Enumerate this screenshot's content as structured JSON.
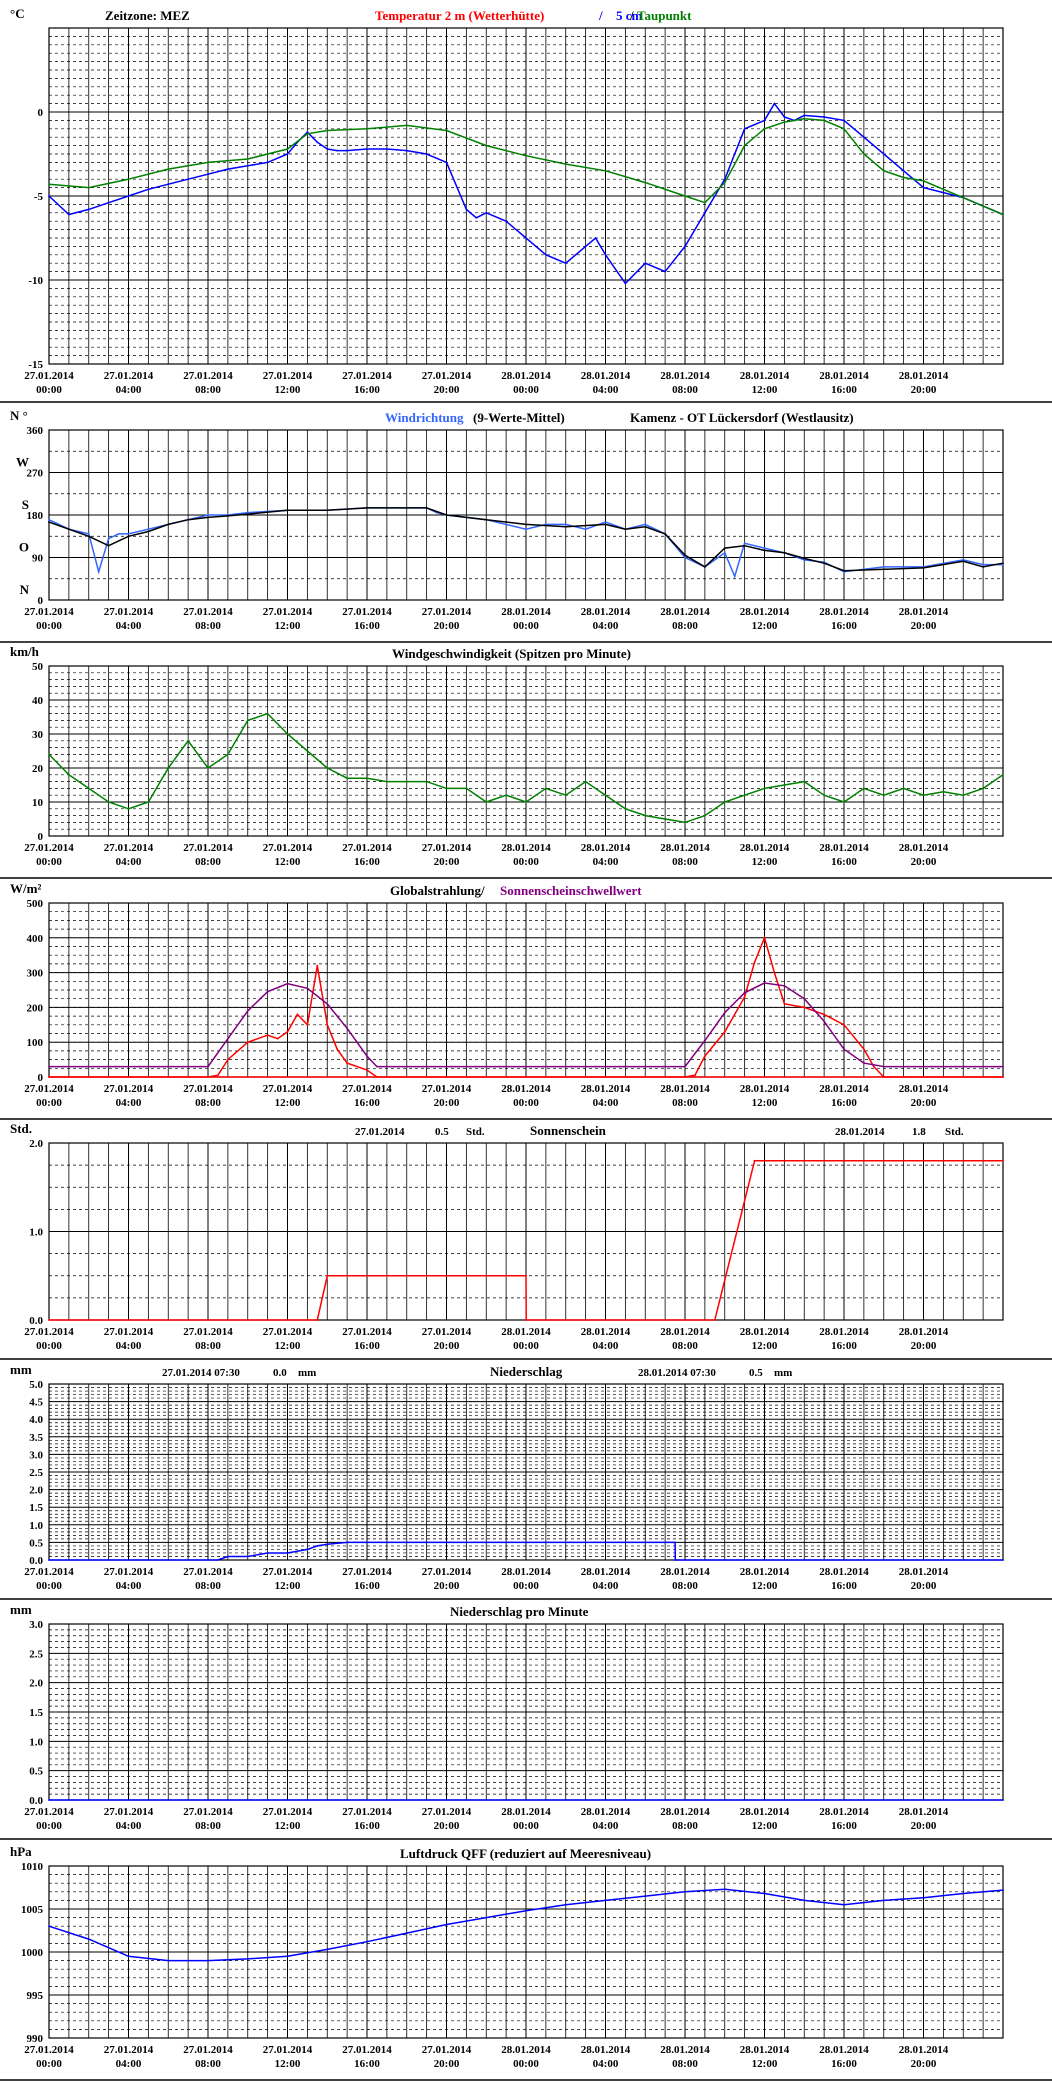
{
  "x_axis": {
    "dates": [
      "27.01.2014",
      "27.01.2014",
      "27.01.2014",
      "27.01.2014",
      "27.01.2014",
      "27.01.2014",
      "28.01.2014",
      "28.01.2014",
      "28.01.2014",
      "28.01.2014",
      "28.01.2014",
      "28.01.2014"
    ],
    "times": [
      "00:00",
      "04:00",
      "08:00",
      "12:00",
      "16:00",
      "20:00",
      "00:00",
      "04:00",
      "08:00",
      "12:00",
      "16:00",
      "20:00"
    ],
    "range_hours": [
      0,
      48
    ]
  },
  "colors": {
    "frame": "#000000",
    "red": "#ff0000",
    "blue": "#0000ff",
    "lightblue": "#3366ff",
    "green": "#008000",
    "purple": "#800080",
    "navy": "#000080"
  },
  "panels": [
    {
      "id": "temperature",
      "unit": "°C",
      "title_parts": [
        {
          "text": "Zeitzone: MEZ",
          "color": "#000000"
        },
        {
          "text": "Temperatur 2 m (Wetterhütte)",
          "color": "#ff0000"
        },
        {
          "text": "/",
          "color": "#0000ff"
        },
        {
          "text": "5 cm",
          "color": "#0000ff"
        },
        {
          "text": "/",
          "color": "#000000"
        },
        {
          "text": "Taupunkt",
          "color": "#008000"
        }
      ],
      "yticks": [
        "0",
        "-5",
        "-10",
        "-15"
      ]
    },
    {
      "id": "wind_direction",
      "unit": "N °",
      "title_parts": [
        {
          "text": "Windrichtung",
          "color": "#3366ff"
        },
        {
          "text": "(9-Werte-Mittel)",
          "color": "#000000"
        },
        {
          "text": "Kamenz - OT Lückersdorf (Westlausitz)",
          "color": "#000000"
        }
      ],
      "yticks": [
        "360",
        "270",
        "180",
        "90",
        "0"
      ],
      "compass": [
        "W",
        "S",
        "O",
        "N"
      ]
    },
    {
      "id": "wind_speed",
      "unit": "km/h",
      "title_parts": [
        {
          "text": "Windgeschwindigkeit (Spitzen pro Minute)",
          "color": "#000000"
        }
      ],
      "yticks": [
        "50",
        "40",
        "30",
        "20",
        "10",
        "0"
      ]
    },
    {
      "id": "radiation",
      "unit": "W/m²",
      "title_parts": [
        {
          "text": "Globalstrahlung/",
          "color": "#000000"
        },
        {
          "text": "Sonnenscheinschwellwert",
          "color": "#800080"
        }
      ],
      "yticks": [
        "500",
        "400",
        "300",
        "200",
        "100",
        "0"
      ]
    },
    {
      "id": "sunshine",
      "unit": "Std.",
      "title_parts": [
        {
          "text": "Sonnenschein",
          "color": "#000000"
        }
      ],
      "summary": [
        {
          "date": "27.01.2014",
          "value": "0.5",
          "unit": "Std."
        },
        {
          "date": "28.01.2014",
          "value": "1.8",
          "unit": "Std."
        }
      ],
      "yticks": [
        "2.0",
        "1.0",
        "0.0"
      ]
    },
    {
      "id": "precipitation",
      "unit": "mm",
      "title_parts": [
        {
          "text": "Niederschlag",
          "color": "#000000"
        }
      ],
      "summary": [
        {
          "date": "27.01.2014 07:30",
          "value": "0.0",
          "unit": "mm"
        },
        {
          "date": "28.01.2014 07:30",
          "value": "0.5",
          "unit": "mm"
        }
      ],
      "yticks": [
        "5.0",
        "4.5",
        "4.0",
        "3.5",
        "3.0",
        "2.5",
        "2.0",
        "1.5",
        "1.0",
        "0.5",
        "0.0"
      ]
    },
    {
      "id": "precip_minute",
      "unit": "mm",
      "title_parts": [
        {
          "text": "Niederschlag pro Minute",
          "color": "#000000"
        }
      ],
      "yticks": [
        "3.0",
        "2.5",
        "2.0",
        "1.5",
        "1.0",
        "0.5",
        "0.0"
      ]
    },
    {
      "id": "pressure",
      "unit": "hPa",
      "title_parts": [
        {
          "text": "Luftdruck QFF (reduziert auf Meeresniveau)",
          "color": "#000000"
        }
      ],
      "yticks": [
        "1010",
        "1005",
        "1000",
        "995",
        "990"
      ]
    }
  ],
  "chart_data": [
    {
      "type": "line",
      "title": "Temperatur 2 m (Wetterhütte) / 5 cm / Taupunkt",
      "ylabel": "°C",
      "ylim": [
        -15,
        5
      ],
      "xlim_hours": [
        0,
        48
      ],
      "series": [
        {
          "name": "Temperatur 2 m (Wetterhütte)",
          "color": "#0000ff",
          "x": [
            0,
            1,
            2,
            3,
            4,
            5,
            6,
            7,
            8,
            9,
            10,
            11,
            12,
            12.5,
            13,
            13.5,
            14,
            14.5,
            15,
            16,
            17,
            18,
            19,
            20,
            21,
            21.5,
            22,
            23,
            24,
            25,
            26,
            27,
            27.5,
            28,
            29,
            30,
            31,
            32,
            33,
            34,
            35,
            36,
            36.5,
            37,
            37.5,
            38,
            39,
            40,
            41,
            42,
            43,
            44,
            45,
            46,
            47,
            48
          ],
          "y": [
            -5,
            -6.1,
            -5.8,
            -5.4,
            -5,
            -4.6,
            -4.3,
            -4,
            -3.7,
            -3.4,
            -3.2,
            -3,
            -2.5,
            -1.8,
            -1.2,
            -1.8,
            -2.2,
            -2.3,
            -2.3,
            -2.2,
            -2.2,
            -2.3,
            -2.5,
            -3,
            -5.8,
            -6.3,
            -6,
            -6.5,
            -7.5,
            -8.5,
            -9,
            -8,
            -7.5,
            -8.5,
            -10.2,
            -9,
            -9.5,
            -8,
            -6,
            -4,
            -1,
            -0.5,
            0.5,
            -0.3,
            -0.5,
            -0.2,
            -0.3,
            -0.5,
            -1.5,
            -2.5,
            -3.5,
            -4.5,
            -4.8,
            -5.1,
            -5.6,
            -6.1
          ]
        },
        {
          "name": "Taupunkt",
          "color": "#008000",
          "x": [
            0,
            2,
            4,
            6,
            8,
            10,
            12,
            13,
            14,
            16,
            18,
            20,
            22,
            24,
            26,
            28,
            30,
            32,
            33,
            34,
            35,
            36,
            37,
            38,
            39,
            40,
            41,
            42,
            43,
            44,
            45,
            46,
            47,
            48
          ],
          "y": [
            -4.3,
            -4.5,
            -4,
            -3.4,
            -3,
            -2.8,
            -2.2,
            -1.3,
            -1.1,
            -1,
            -0.8,
            -1.1,
            -2,
            -2.6,
            -3.1,
            -3.5,
            -4.2,
            -5,
            -5.4,
            -4.2,
            -2,
            -1,
            -0.6,
            -0.4,
            -0.5,
            -1,
            -2.5,
            -3.5,
            -3.9,
            -4.1,
            -4.6,
            -5.1,
            -5.6,
            -6.1
          ]
        }
      ]
    },
    {
      "type": "line",
      "title": "Windrichtung (9-Werte-Mittel)",
      "ylabel": "°",
      "ylim": [
        0,
        360
      ],
      "xlim_hours": [
        0,
        48
      ],
      "series": [
        {
          "name": "Windrichtung",
          "color": "#3366ff",
          "x": [
            0,
            1,
            2,
            2.5,
            3,
            3.5,
            4,
            5,
            6,
            7,
            8,
            9,
            10,
            12,
            14,
            16,
            18,
            19,
            19.5,
            20,
            22,
            24,
            25,
            26,
            27,
            28,
            29,
            30,
            31,
            32,
            33,
            34,
            34.5,
            35,
            36,
            37,
            38,
            39,
            40,
            42,
            44,
            46,
            47,
            48
          ],
          "y": [
            170,
            150,
            140,
            60,
            130,
            140,
            140,
            150,
            160,
            170,
            180,
            180,
            185,
            190,
            190,
            195,
            195,
            195,
            185,
            180,
            170,
            150,
            160,
            160,
            150,
            165,
            150,
            160,
            140,
            90,
            70,
            100,
            50,
            120,
            110,
            100,
            85,
            80,
            60,
            70,
            70,
            85,
            75,
            75
          ]
        },
        {
          "name": "9-Werte-Mittel",
          "color": "#000000",
          "x": [
            0,
            1,
            2,
            3,
            4,
            5,
            6,
            7,
            8,
            9,
            10,
            12,
            14,
            16,
            18,
            19,
            20,
            22,
            24,
            26,
            28,
            29,
            30,
            31,
            32,
            33,
            34,
            35,
            36,
            37,
            38,
            39,
            40,
            42,
            44,
            46,
            47,
            48
          ],
          "y": [
            165,
            150,
            135,
            115,
            135,
            145,
            160,
            170,
            175,
            178,
            182,
            190,
            190,
            195,
            195,
            195,
            180,
            170,
            160,
            155,
            160,
            150,
            155,
            140,
            95,
            70,
            110,
            115,
            105,
            100,
            88,
            78,
            62,
            65,
            68,
            82,
            70,
            78
          ]
        }
      ]
    },
    {
      "type": "line",
      "title": "Windgeschwindigkeit (Spitzen pro Minute)",
      "ylabel": "km/h",
      "ylim": [
        0,
        50
      ],
      "xlim_hours": [
        0,
        48
      ],
      "series": [
        {
          "name": "Windgeschwindigkeit",
          "color": "#008000",
          "x": [
            0,
            1,
            2,
            3,
            4,
            5,
            6,
            7,
            8,
            9,
            10,
            11,
            12,
            13,
            14,
            15,
            16,
            17,
            18,
            19,
            20,
            21,
            22,
            23,
            24,
            25,
            26,
            27,
            28,
            29,
            30,
            31,
            32,
            33,
            34,
            35,
            36,
            37,
            38,
            39,
            40,
            41,
            42,
            43,
            44,
            45,
            46,
            47,
            48
          ],
          "y": [
            24,
            18,
            14,
            10,
            8,
            10,
            20,
            28,
            20,
            24,
            34,
            36,
            30,
            25,
            20,
            17,
            17,
            16,
            16,
            16,
            14,
            14,
            10,
            12,
            10,
            14,
            12,
            16,
            12,
            8,
            6,
            5,
            4,
            6,
            10,
            12,
            14,
            15,
            16,
            12,
            10,
            14,
            12,
            14,
            12,
            13,
            12,
            14,
            18
          ]
        }
      ]
    },
    {
      "type": "line",
      "title": "Globalstrahlung/ Sonnenscheinschwellwert",
      "ylabel": "W/m²",
      "ylim": [
        0,
        500
      ],
      "xlim_hours": [
        0,
        48
      ],
      "series": [
        {
          "name": "Globalstrahlung",
          "color": "#ff0000",
          "x": [
            0,
            8,
            8.5,
            9,
            10,
            11,
            11.5,
            12,
            12.5,
            13,
            13.5,
            14,
            14.5,
            15,
            16,
            16.5,
            48
          ],
          "y": [
            0,
            0,
            5,
            50,
            100,
            120,
            110,
            130,
            180,
            150,
            320,
            150,
            80,
            40,
            20,
            0,
            0
          ],
          "x2": [
            0,
            32,
            32.5,
            33,
            34,
            35,
            35.5,
            36,
            36.5,
            37,
            38,
            39,
            40,
            41,
            41.5,
            42,
            48
          ],
          "y2": [
            0,
            0,
            5,
            60,
            130,
            230,
            330,
            400,
            300,
            210,
            200,
            180,
            150,
            80,
            30,
            0,
            0
          ]
        },
        {
          "name": "Sonnenscheinschwellwert",
          "color": "#800080",
          "x": [
            0,
            8,
            9,
            10,
            11,
            12,
            13,
            14,
            15,
            16,
            16.5,
            32,
            33,
            34,
            35,
            36,
            37,
            38,
            39,
            40,
            41,
            42,
            48
          ],
          "y": [
            30,
            30,
            110,
            190,
            245,
            268,
            255,
            210,
            140,
            60,
            30,
            30,
            105,
            185,
            242,
            270,
            262,
            225,
            160,
            80,
            40,
            30,
            30
          ]
        }
      ]
    },
    {
      "type": "line",
      "title": "Sonnenschein",
      "ylabel": "Std.",
      "ylim": [
        0,
        2
      ],
      "xlim_hours": [
        0,
        48
      ],
      "series": [
        {
          "name": "Sonnenschein",
          "color": "#ff0000",
          "x": [
            0,
            13.5,
            14,
            24,
            24.01,
            33.5,
            35.5,
            48
          ],
          "y": [
            0,
            0,
            0.5,
            0.5,
            0,
            0,
            1.8,
            1.8
          ]
        }
      ]
    },
    {
      "type": "line",
      "title": "Niederschlag",
      "ylabel": "mm",
      "ylim": [
        0,
        5
      ],
      "xlim_hours": [
        0,
        48
      ],
      "series": [
        {
          "name": "Niederschlag",
          "color": "#0000ff",
          "x": [
            0,
            8.5,
            9,
            10,
            11,
            12,
            13,
            13.5,
            14,
            15,
            31.5,
            31.51,
            48
          ],
          "y": [
            0,
            0,
            0.1,
            0.1,
            0.2,
            0.2,
            0.3,
            0.4,
            0.45,
            0.5,
            0.5,
            0,
            0
          ]
        }
      ]
    },
    {
      "type": "line",
      "title": "Niederschlag pro Minute",
      "ylabel": "mm",
      "ylim": [
        0,
        3
      ],
      "xlim_hours": [
        0,
        48
      ],
      "series": [
        {
          "name": "Niederschlag pro Minute",
          "color": "#0000ff",
          "x": [
            0,
            48
          ],
          "y": [
            0,
            0
          ]
        }
      ]
    },
    {
      "type": "line",
      "title": "Luftdruck QFF (reduziert auf Meeresniveau)",
      "ylabel": "hPa",
      "ylim": [
        990,
        1010
      ],
      "xlim_hours": [
        0,
        48
      ],
      "series": [
        {
          "name": "Luftdruck QFF",
          "color": "#0000ff",
          "x": [
            0,
            2,
            4,
            6,
            8,
            10,
            12,
            14,
            16,
            18,
            20,
            22,
            24,
            26,
            28,
            30,
            32,
            34,
            36,
            38,
            40,
            42,
            44,
            46,
            48
          ],
          "y": [
            1003,
            1001.5,
            999.5,
            999,
            999,
            999.2,
            999.5,
            1000.3,
            1001.2,
            1002.2,
            1003.2,
            1004,
            1004.8,
            1005.5,
            1006,
            1006.5,
            1007,
            1007.3,
            1006.8,
            1006,
            1005.5,
            1006,
            1006.3,
            1006.8,
            1007.2
          ]
        }
      ]
    }
  ]
}
